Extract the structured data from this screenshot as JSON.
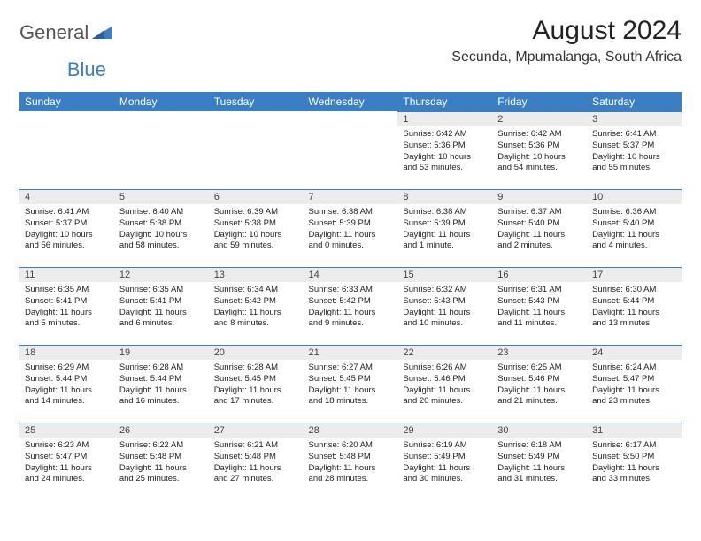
{
  "logo": {
    "part1": "General",
    "part2": "Blue"
  },
  "title": "August 2024",
  "location": "Secunda, Mpumalanga, South Africa",
  "colors": {
    "header_bg": "#3a7fc4",
    "header_text": "#ffffff",
    "daynum_bg": "#ececec",
    "daynum_border": "#3a7fc4",
    "body_text": "#222222",
    "page_bg": "#ffffff"
  },
  "weekdays": [
    "Sunday",
    "Monday",
    "Tuesday",
    "Wednesday",
    "Thursday",
    "Friday",
    "Saturday"
  ],
  "weeks": [
    [
      null,
      null,
      null,
      null,
      {
        "n": "1",
        "sr": "Sunrise: 6:42 AM",
        "ss": "Sunset: 5:36 PM",
        "d1": "Daylight: 10 hours",
        "d2": "and 53 minutes."
      },
      {
        "n": "2",
        "sr": "Sunrise: 6:42 AM",
        "ss": "Sunset: 5:36 PM",
        "d1": "Daylight: 10 hours",
        "d2": "and 54 minutes."
      },
      {
        "n": "3",
        "sr": "Sunrise: 6:41 AM",
        "ss": "Sunset: 5:37 PM",
        "d1": "Daylight: 10 hours",
        "d2": "and 55 minutes."
      }
    ],
    [
      {
        "n": "4",
        "sr": "Sunrise: 6:41 AM",
        "ss": "Sunset: 5:37 PM",
        "d1": "Daylight: 10 hours",
        "d2": "and 56 minutes."
      },
      {
        "n": "5",
        "sr": "Sunrise: 6:40 AM",
        "ss": "Sunset: 5:38 PM",
        "d1": "Daylight: 10 hours",
        "d2": "and 58 minutes."
      },
      {
        "n": "6",
        "sr": "Sunrise: 6:39 AM",
        "ss": "Sunset: 5:38 PM",
        "d1": "Daylight: 10 hours",
        "d2": "and 59 minutes."
      },
      {
        "n": "7",
        "sr": "Sunrise: 6:38 AM",
        "ss": "Sunset: 5:39 PM",
        "d1": "Daylight: 11 hours",
        "d2": "and 0 minutes."
      },
      {
        "n": "8",
        "sr": "Sunrise: 6:38 AM",
        "ss": "Sunset: 5:39 PM",
        "d1": "Daylight: 11 hours",
        "d2": "and 1 minute."
      },
      {
        "n": "9",
        "sr": "Sunrise: 6:37 AM",
        "ss": "Sunset: 5:40 PM",
        "d1": "Daylight: 11 hours",
        "d2": "and 2 minutes."
      },
      {
        "n": "10",
        "sr": "Sunrise: 6:36 AM",
        "ss": "Sunset: 5:40 PM",
        "d1": "Daylight: 11 hours",
        "d2": "and 4 minutes."
      }
    ],
    [
      {
        "n": "11",
        "sr": "Sunrise: 6:35 AM",
        "ss": "Sunset: 5:41 PM",
        "d1": "Daylight: 11 hours",
        "d2": "and 5 minutes."
      },
      {
        "n": "12",
        "sr": "Sunrise: 6:35 AM",
        "ss": "Sunset: 5:41 PM",
        "d1": "Daylight: 11 hours",
        "d2": "and 6 minutes."
      },
      {
        "n": "13",
        "sr": "Sunrise: 6:34 AM",
        "ss": "Sunset: 5:42 PM",
        "d1": "Daylight: 11 hours",
        "d2": "and 8 minutes."
      },
      {
        "n": "14",
        "sr": "Sunrise: 6:33 AM",
        "ss": "Sunset: 5:42 PM",
        "d1": "Daylight: 11 hours",
        "d2": "and 9 minutes."
      },
      {
        "n": "15",
        "sr": "Sunrise: 6:32 AM",
        "ss": "Sunset: 5:43 PM",
        "d1": "Daylight: 11 hours",
        "d2": "and 10 minutes."
      },
      {
        "n": "16",
        "sr": "Sunrise: 6:31 AM",
        "ss": "Sunset: 5:43 PM",
        "d1": "Daylight: 11 hours",
        "d2": "and 11 minutes."
      },
      {
        "n": "17",
        "sr": "Sunrise: 6:30 AM",
        "ss": "Sunset: 5:44 PM",
        "d1": "Daylight: 11 hours",
        "d2": "and 13 minutes."
      }
    ],
    [
      {
        "n": "18",
        "sr": "Sunrise: 6:29 AM",
        "ss": "Sunset: 5:44 PM",
        "d1": "Daylight: 11 hours",
        "d2": "and 14 minutes."
      },
      {
        "n": "19",
        "sr": "Sunrise: 6:28 AM",
        "ss": "Sunset: 5:44 PM",
        "d1": "Daylight: 11 hours",
        "d2": "and 16 minutes."
      },
      {
        "n": "20",
        "sr": "Sunrise: 6:28 AM",
        "ss": "Sunset: 5:45 PM",
        "d1": "Daylight: 11 hours",
        "d2": "and 17 minutes."
      },
      {
        "n": "21",
        "sr": "Sunrise: 6:27 AM",
        "ss": "Sunset: 5:45 PM",
        "d1": "Daylight: 11 hours",
        "d2": "and 18 minutes."
      },
      {
        "n": "22",
        "sr": "Sunrise: 6:26 AM",
        "ss": "Sunset: 5:46 PM",
        "d1": "Daylight: 11 hours",
        "d2": "and 20 minutes."
      },
      {
        "n": "23",
        "sr": "Sunrise: 6:25 AM",
        "ss": "Sunset: 5:46 PM",
        "d1": "Daylight: 11 hours",
        "d2": "and 21 minutes."
      },
      {
        "n": "24",
        "sr": "Sunrise: 6:24 AM",
        "ss": "Sunset: 5:47 PM",
        "d1": "Daylight: 11 hours",
        "d2": "and 23 minutes."
      }
    ],
    [
      {
        "n": "25",
        "sr": "Sunrise: 6:23 AM",
        "ss": "Sunset: 5:47 PM",
        "d1": "Daylight: 11 hours",
        "d2": "and 24 minutes."
      },
      {
        "n": "26",
        "sr": "Sunrise: 6:22 AM",
        "ss": "Sunset: 5:48 PM",
        "d1": "Daylight: 11 hours",
        "d2": "and 25 minutes."
      },
      {
        "n": "27",
        "sr": "Sunrise: 6:21 AM",
        "ss": "Sunset: 5:48 PM",
        "d1": "Daylight: 11 hours",
        "d2": "and 27 minutes."
      },
      {
        "n": "28",
        "sr": "Sunrise: 6:20 AM",
        "ss": "Sunset: 5:48 PM",
        "d1": "Daylight: 11 hours",
        "d2": "and 28 minutes."
      },
      {
        "n": "29",
        "sr": "Sunrise: 6:19 AM",
        "ss": "Sunset: 5:49 PM",
        "d1": "Daylight: 11 hours",
        "d2": "and 30 minutes."
      },
      {
        "n": "30",
        "sr": "Sunrise: 6:18 AM",
        "ss": "Sunset: 5:49 PM",
        "d1": "Daylight: 11 hours",
        "d2": "and 31 minutes."
      },
      {
        "n": "31",
        "sr": "Sunrise: 6:17 AM",
        "ss": "Sunset: 5:50 PM",
        "d1": "Daylight: 11 hours",
        "d2": "and 33 minutes."
      }
    ]
  ]
}
